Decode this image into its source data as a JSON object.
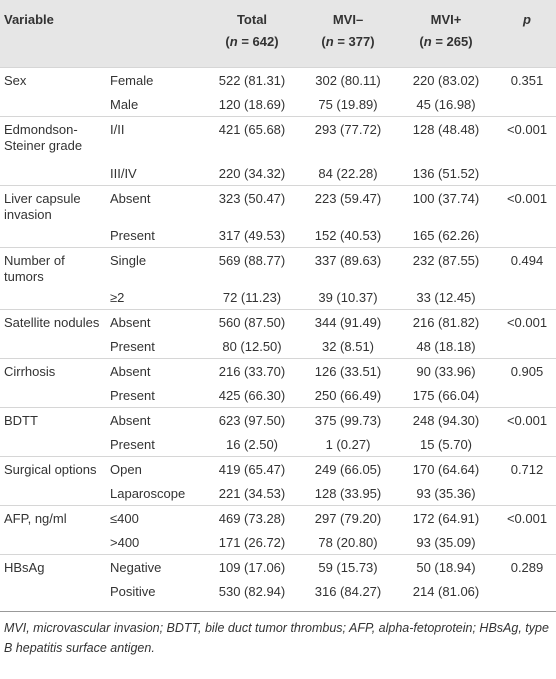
{
  "header": {
    "variable": "Variable",
    "columns": [
      {
        "label": "Total",
        "n": [
          "(",
          "n",
          " = 642)"
        ]
      },
      {
        "label": "MVI–",
        "n": [
          "(",
          "n",
          " = 377)"
        ]
      },
      {
        "label": "MVI+",
        "n": [
          "(",
          "n",
          " = 265)"
        ]
      }
    ],
    "p": "p"
  },
  "groups": [
    {
      "label": "Sex",
      "p": "0.351",
      "rows": [
        [
          "Female",
          "522 (81.31)",
          "302 (80.11)",
          "220 (83.02)"
        ],
        [
          "Male",
          "120 (18.69)",
          "75 (19.89)",
          "45 (16.98)"
        ]
      ]
    },
    {
      "label": "Edmondson-Steiner grade",
      "p": "<0.001",
      "rows": [
        [
          "I/II",
          "421 (65.68)",
          "293 (77.72)",
          "128 (48.48)"
        ],
        [
          "III/IV",
          "220 (34.32)",
          "84 (22.28)",
          "136 (51.52)"
        ]
      ]
    },
    {
      "label": "Liver capsule invasion",
      "p": "<0.001",
      "rows": [
        [
          "Absent",
          "323 (50.47)",
          "223 (59.47)",
          "100 (37.74)"
        ],
        [
          "Present",
          "317 (49.53)",
          "152 (40.53)",
          "165 (62.26)"
        ]
      ]
    },
    {
      "label": "Number of tumors",
      "p": "0.494",
      "rows": [
        [
          "Single",
          "569 (88.77)",
          "337 (89.63)",
          "232 (87.55)"
        ],
        [
          "≥2",
          "72 (11.23)",
          "39 (10.37)",
          "33 (12.45)"
        ]
      ]
    },
    {
      "label": "Satellite nodules",
      "p": "<0.001",
      "rows": [
        [
          "Absent",
          "560 (87.50)",
          "344 (91.49)",
          "216 (81.82)"
        ],
        [
          "Present",
          "80 (12.50)",
          "32 (8.51)",
          "48 (18.18)"
        ]
      ]
    },
    {
      "label": "Cirrhosis",
      "p": "0.905",
      "rows": [
        [
          "Absent",
          "216 (33.70)",
          "126 (33.51)",
          "90 (33.96)"
        ],
        [
          "Present",
          "425 (66.30)",
          "250 (66.49)",
          "175 (66.04)"
        ]
      ]
    },
    {
      "label": "BDTT",
      "p": "<0.001",
      "rows": [
        [
          "Absent",
          "623 (97.50)",
          "375 (99.73)",
          "248 (94.30)"
        ],
        [
          "Present",
          "16 (2.50)",
          "1 (0.27)",
          "15 (5.70)"
        ]
      ]
    },
    {
      "label": "Surgical options",
      "p": "0.712",
      "rows": [
        [
          "Open",
          "419 (65.47)",
          "249 (66.05)",
          "170 (64.64)"
        ],
        [
          "Laparoscope",
          "221 (34.53)",
          "128 (33.95)",
          "93 (35.36)"
        ]
      ]
    },
    {
      "label": "AFP, ng/ml",
      "p": "<0.001",
      "rows": [
        [
          "≤400",
          "469 (73.28)",
          "297 (79.20)",
          "172 (64.91)"
        ],
        [
          ">400",
          "171 (26.72)",
          "78 (20.80)",
          "93 (35.09)"
        ]
      ]
    },
    {
      "label": "HBsAg",
      "p": "0.289",
      "rows": [
        [
          "Negative",
          "109 (17.06)",
          "59 (15.73)",
          "50 (18.94)"
        ],
        [
          "Positive",
          "530 (82.94)",
          "316 (84.27)",
          "214 (81.06)"
        ]
      ]
    }
  ],
  "footnote": "MVI, microvascular invasion; BDTT, bile duct tumor thrombus; AFP, alpha-fetoprotein; HBsAg, type B hepatitis surface antigen."
}
